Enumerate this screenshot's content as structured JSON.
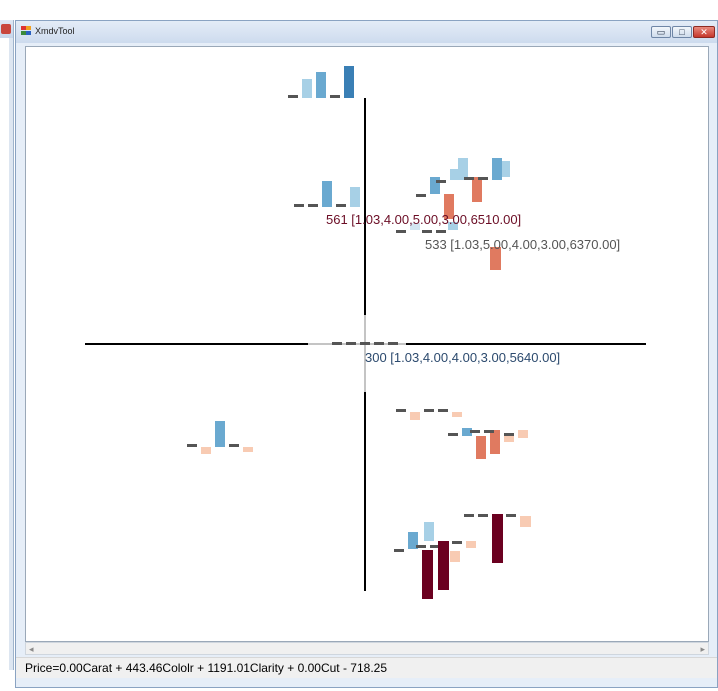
{
  "window": {
    "title": "XmdvTool"
  },
  "buttons": {
    "minimize": "▭",
    "maximize": "□",
    "close": "✕"
  },
  "status": {
    "formula": "Price=0.00Carat + 443.46Cololr + 1191.01Clarity + 0.00Cut - 718.25"
  },
  "labels": [
    {
      "text": "561 [1.03,4.00,5.00,3.00,6510.00]",
      "color": "#6b0d25"
    },
    {
      "text": "533 [1.03,5.00,4.00,3.00,6370.00]",
      "color": "#555555"
    },
    {
      "text": "300 [1.03,4.00,4.00,3.00,5640.00]",
      "color": "#2c4a6e"
    }
  ],
  "colors": {
    "dark_red": "#6b0020",
    "red": "#e07a60",
    "pale_peach": "#f8cbb3",
    "pale_blue": "#a7d0e6",
    "mid_blue": "#6aa9d0",
    "blue": "#3a7fb5",
    "gray_dash": "#555555",
    "axis": "#000000"
  },
  "icons": [
    "app-icon",
    "minimize-icon",
    "maximize-icon",
    "close-icon",
    "scroll-left-icon",
    "scroll-right-icon"
  ]
}
